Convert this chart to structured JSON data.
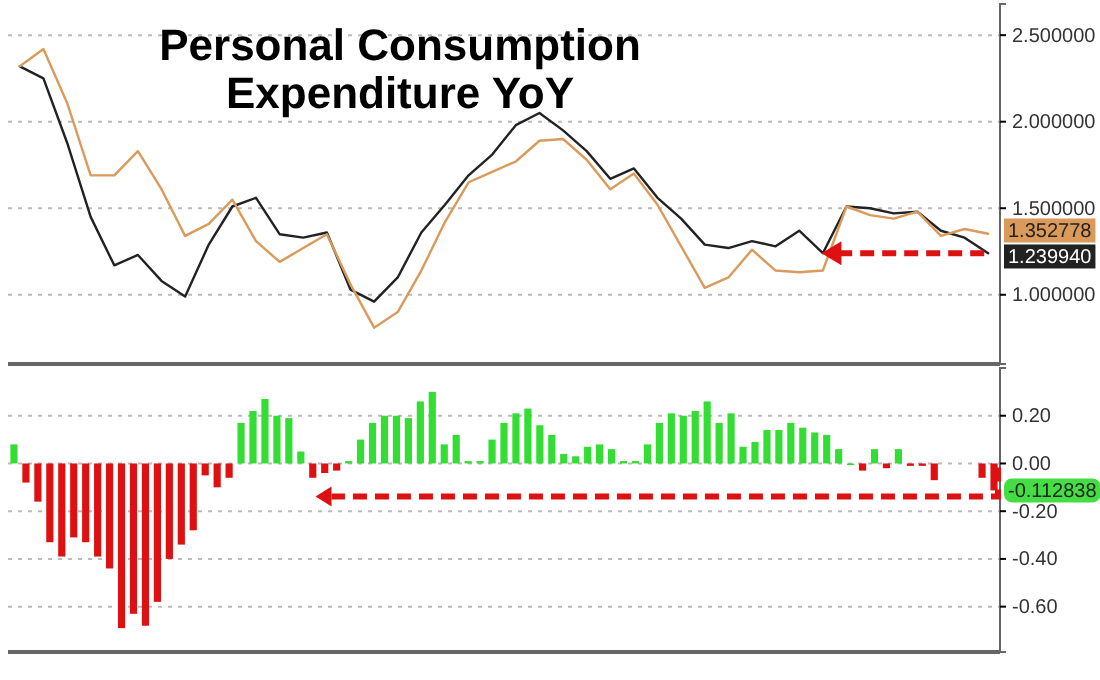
{
  "chart_data": [
    {
      "type": "line",
      "title": "Personal Consumption Expenditure YoY",
      "categories": [
        null,
        null,
        null,
        null,
        null,
        null,
        null,
        null,
        null,
        null,
        null,
        null,
        null,
        null,
        null,
        null,
        null,
        null,
        null,
        null,
        null,
        null,
        null,
        null,
        null,
        null,
        null,
        null,
        null,
        null,
        null,
        null,
        null,
        null,
        null,
        null,
        null,
        null,
        null,
        null,
        null,
        null
      ],
      "series": [
        {
          "color": "#222222",
          "values": [
            2.32,
            2.25,
            1.88,
            1.45,
            1.17,
            1.23,
            1.08,
            0.99,
            1.29,
            1.51,
            1.56,
            1.35,
            1.33,
            1.36,
            1.03,
            0.96,
            1.1,
            1.36,
            1.52,
            1.69,
            1.81,
            1.98,
            2.05,
            1.95,
            1.83,
            1.67,
            1.73,
            1.56,
            1.44,
            1.29,
            1.27,
            1.31,
            1.28,
            1.37,
            1.24,
            1.51,
            1.5,
            1.47,
            1.48,
            1.37,
            1.33,
            1.23994
          ]
        },
        {
          "color": "#d99a5b",
          "values": [
            2.32,
            2.42,
            2.11,
            1.69,
            1.69,
            1.83,
            1.61,
            1.34,
            1.41,
            1.55,
            1.31,
            1.19,
            1.27,
            1.35,
            1.06,
            0.81,
            0.9,
            1.14,
            1.42,
            1.65,
            1.71,
            1.77,
            1.89,
            1.9,
            1.78,
            1.61,
            1.7,
            1.52,
            1.28,
            1.04,
            1.1,
            1.26,
            1.14,
            1.13,
            1.14,
            1.51,
            1.46,
            1.44,
            1.48,
            1.34,
            1.38,
            1.352778
          ]
        }
      ],
      "ylim": [
        0.6,
        2.68
      ],
      "yticks": [
        {
          "value": 1,
          "label": "1.000000"
        },
        {
          "value": 1.5,
          "label": "1.500000"
        },
        {
          "value": 2,
          "label": "2.000000"
        },
        {
          "value": 2.5,
          "label": "2.500000"
        }
      ],
      "grid": "y",
      "tick_labels": "y",
      "annotations": [
        "1.239940",
        "1.352778"
      ]
    },
    {
      "type": "bar",
      "categories": [
        null,
        null,
        null,
        null,
        null,
        null,
        null,
        null,
        null,
        null,
        null,
        null,
        null,
        null,
        null,
        null,
        null,
        null,
        null,
        null,
        null,
        null,
        null,
        null,
        null,
        null,
        null,
        null,
        null,
        null,
        null,
        null,
        null,
        null,
        null,
        null,
        null,
        null,
        null,
        null,
        null,
        null,
        null,
        null,
        null,
        null,
        null,
        null,
        null,
        null,
        null,
        null,
        null,
        null,
        null,
        null,
        null,
        null,
        null,
        null,
        null,
        null,
        null,
        null,
        null,
        null,
        null,
        null,
        null,
        null,
        null,
        null,
        null,
        null,
        null,
        null,
        null,
        null,
        null,
        null,
        null,
        null,
        null
      ],
      "values": [
        0.08,
        -0.08,
        -0.16,
        -0.33,
        -0.39,
        -0.31,
        -0.33,
        -0.39,
        -0.44,
        -0.69,
        -0.63,
        -0.68,
        -0.58,
        -0.4,
        -0.34,
        -0.28,
        -0.05,
        -0.1,
        -0.06,
        0.17,
        0.22,
        0.27,
        0.2,
        0.19,
        0.05,
        -0.06,
        -0.04,
        -0.03,
        0.01,
        0.1,
        0.17,
        0.2,
        0.2,
        0.19,
        0.26,
        0.3,
        0.08,
        0.12,
        0.01,
        0.01,
        0.1,
        0.17,
        0.21,
        0.23,
        0.16,
        0.12,
        0.04,
        0.03,
        0.07,
        0.08,
        0.06,
        0.01,
        0.01,
        0.08,
        0.17,
        0.21,
        0.2,
        0.22,
        0.26,
        0.17,
        0.21,
        0.07,
        0.09,
        0.14,
        0.14,
        0.17,
        0.15,
        0.13,
        0.12,
        0.06,
        0,
        -0.03,
        0.06,
        -0.02,
        0.06,
        -0.01,
        -0.01,
        -0.07,
        null,
        null,
        null,
        -0.06,
        -0.112838
      ],
      "colors": [
        "#33dd33",
        "#dd1111",
        "#dd1111",
        "#dd1111",
        "#dd1111",
        "#dd1111",
        "#dd1111",
        "#dd1111",
        "#dd1111",
        "#dd1111",
        "#dd1111",
        "#dd1111",
        "#dd1111",
        "#dd1111",
        "#dd1111",
        "#dd1111",
        "#dd1111",
        "#dd1111",
        "#dd1111",
        "#33dd33",
        "#33dd33",
        "#33dd33",
        "#33dd33",
        "#33dd33",
        "#33dd33",
        "#dd1111",
        "#dd1111",
        "#dd1111",
        "#33dd33",
        "#33dd33",
        "#33dd33",
        "#33dd33",
        "#33dd33",
        "#33dd33",
        "#33dd33",
        "#33dd33",
        "#33dd33",
        "#33dd33",
        "#33dd33",
        "#33dd33",
        "#33dd33",
        "#33dd33",
        "#33dd33",
        "#33dd33",
        "#33dd33",
        "#33dd33",
        "#33dd33",
        "#33dd33",
        "#33dd33",
        "#33dd33",
        "#33dd33",
        "#33dd33",
        "#33dd33",
        "#33dd33",
        "#33dd33",
        "#33dd33",
        "#33dd33",
        "#33dd33",
        "#33dd33",
        "#33dd33",
        "#33dd33",
        "#33dd33",
        "#33dd33",
        "#33dd33",
        "#33dd33",
        "#33dd33",
        "#33dd33",
        "#33dd33",
        "#33dd33",
        "#33dd33",
        "#33dd33",
        "#dd1111",
        "#33dd33",
        "#dd1111",
        "#33dd33",
        "#dd1111",
        "#dd1111",
        "#dd1111",
        null,
        null,
        null,
        "#dd1111",
        "#dd1111"
      ],
      "ylim": [
        -0.79,
        0.4
      ],
      "yticks": [
        {
          "value": -0.6,
          "label": "-0.60"
        },
        {
          "value": -0.4,
          "label": "-0.40"
        },
        {
          "value": -0.2,
          "label": "-0.20"
        },
        {
          "value": 0,
          "label": "0.00"
        },
        {
          "value": 0.2,
          "label": "0.20"
        }
      ],
      "grid": "y",
      "tick_labels": "y",
      "annotations": [
        "-0.112838"
      ]
    }
  ]
}
